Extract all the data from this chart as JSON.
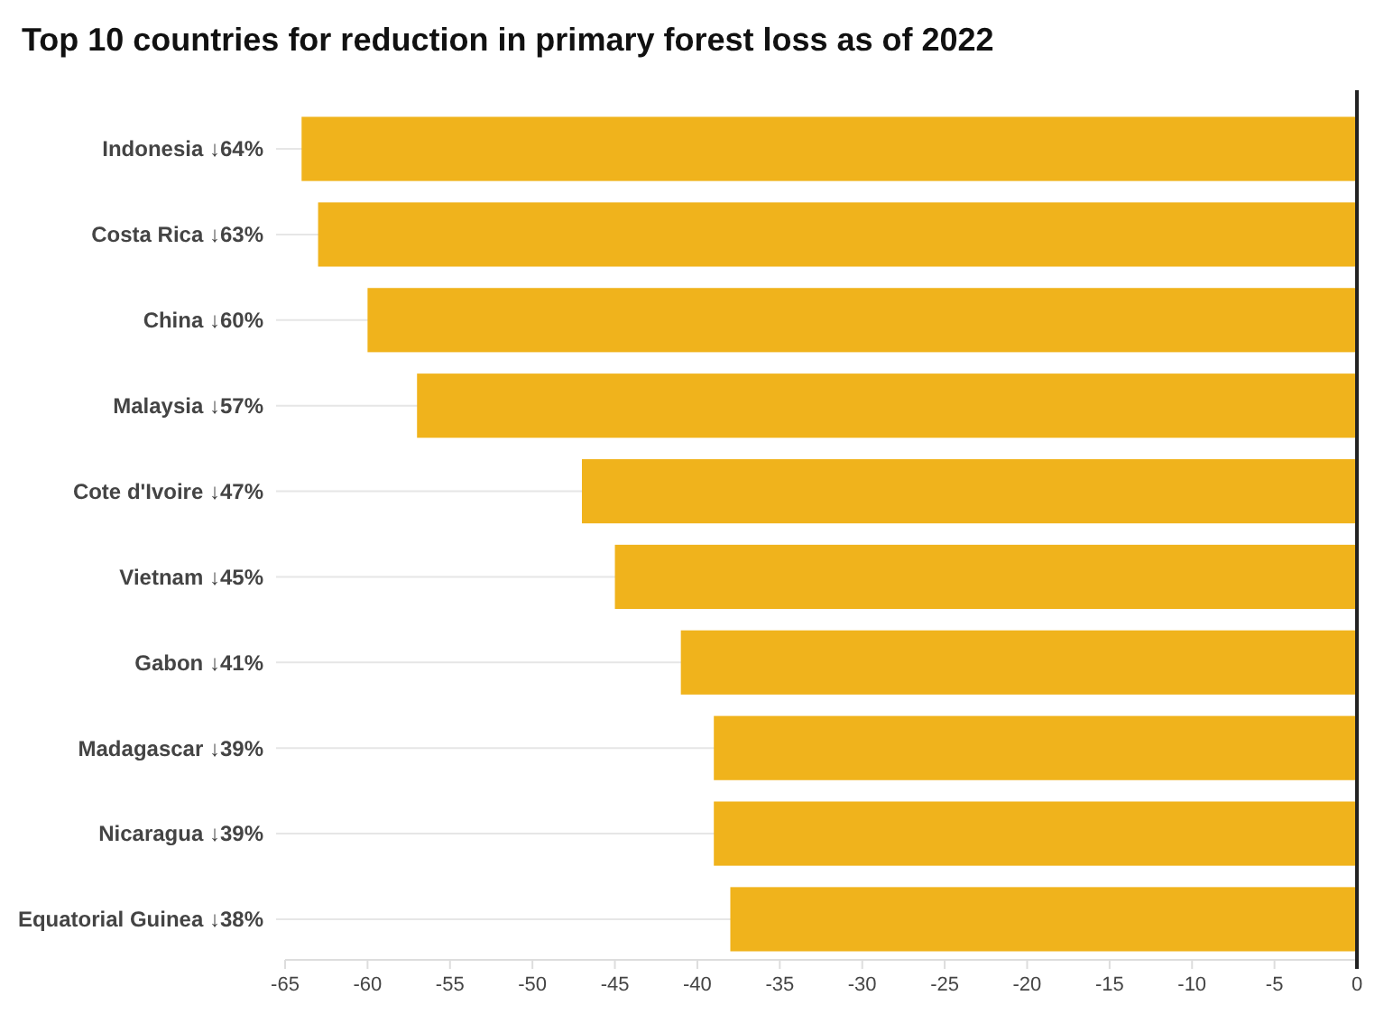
{
  "chart_data": {
    "type": "bar",
    "orientation": "horizontal",
    "title": "Top 10 countries for reduction in primary forest loss as of 2022",
    "categories": [
      "Indonesia ↓64%",
      "Costa Rica ↓63%",
      "China ↓60%",
      "Malaysia ↓57%",
      "Cote d'Ivoire ↓47%",
      "Vietnam ↓45%",
      "Gabon ↓41%",
      "Madagascar ↓39%",
      "Nicaragua ↓39%",
      "Equatorial Guinea ↓38%"
    ],
    "values": [
      -64,
      -63,
      -60,
      -57,
      -47,
      -45,
      -41,
      -39,
      -39,
      -38
    ],
    "color": "#f0b31c",
    "xlim": [
      -65,
      0
    ],
    "xticks": [
      -65,
      -60,
      -55,
      -50,
      -45,
      -40,
      -35,
      -30,
      -25,
      -20,
      -15,
      -10,
      -5,
      0
    ],
    "grid": "y",
    "ref_lines": [
      {
        "axis": "x",
        "value": 0,
        "color": "#222222"
      }
    ]
  }
}
